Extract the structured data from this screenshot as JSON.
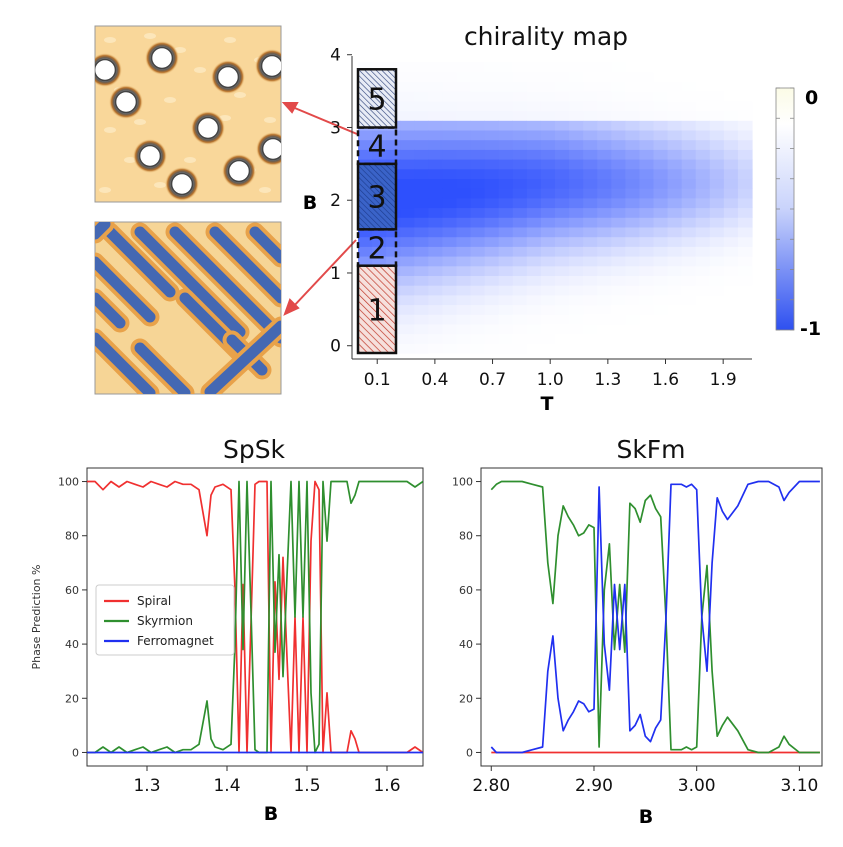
{
  "chart_data": [
    {
      "type": "heatmap",
      "title": "chirality map",
      "xlabel": "T",
      "ylabel": "B",
      "x_ticks": [
        "0.1",
        "0.4",
        "0.7",
        "1.0",
        "1.3",
        "1.6",
        "1.9"
      ],
      "y_ticks": [
        "0",
        "1",
        "2",
        "3",
        "4"
      ],
      "xlim": [
        0.0,
        2.05
      ],
      "ylim": [
        -0.1,
        3.9
      ],
      "colorbar": {
        "min_label": "-1",
        "max_label": "0",
        "min": -1,
        "max": 0,
        "min_color": "#2e50f0",
        "mid_color": "#ffffff",
        "max_color": "#fbfbe6"
      },
      "phase_regions": [
        {
          "label": "1",
          "b_min": -0.1,
          "b_max": 1.1,
          "style": "hatched",
          "color": "#c0392b"
        },
        {
          "label": "2",
          "b_min": 1.1,
          "b_max": 1.6,
          "style": "dashed"
        },
        {
          "label": "3",
          "b_min": 1.6,
          "b_max": 2.5,
          "style": "hatched",
          "color": "#1f4a9e"
        },
        {
          "label": "4",
          "b_min": 2.5,
          "b_max": 3.0,
          "style": "dashed"
        },
        {
          "label": "5",
          "b_min": 3.0,
          "b_max": 3.8,
          "style": "hatched",
          "color": "#1f3a70"
        }
      ],
      "insets": [
        {
          "name": "skyrmion-lattice",
          "points_to_region": "4"
        },
        {
          "name": "spiral-stripes",
          "points_to_region": "2"
        }
      ]
    },
    {
      "type": "line",
      "title": "SpSk",
      "xlabel": "B",
      "ylabel": "Phase Prediction %",
      "xlim": [
        1.225,
        1.645
      ],
      "ylim": [
        -5,
        105
      ],
      "x_ticks": [
        "1.3",
        "1.4",
        "1.5",
        "1.6"
      ],
      "y_ticks": [
        "0",
        "20",
        "40",
        "60",
        "80",
        "100"
      ],
      "x": [
        1.225,
        1.235,
        1.245,
        1.255,
        1.265,
        1.275,
        1.285,
        1.295,
        1.305,
        1.315,
        1.325,
        1.335,
        1.345,
        1.355,
        1.365,
        1.375,
        1.38,
        1.385,
        1.395,
        1.405,
        1.41,
        1.415,
        1.42,
        1.425,
        1.43,
        1.435,
        1.44,
        1.445,
        1.45,
        1.455,
        1.46,
        1.465,
        1.47,
        1.475,
        1.48,
        1.485,
        1.49,
        1.495,
        1.5,
        1.505,
        1.51,
        1.515,
        1.52,
        1.525,
        1.53,
        1.535,
        1.54,
        1.545,
        1.55,
        1.555,
        1.56,
        1.565,
        1.57,
        1.575,
        1.585,
        1.595,
        1.605,
        1.615,
        1.625,
        1.635,
        1.645
      ],
      "series": [
        {
          "name": "Spiral",
          "color": "#f03030",
          "values": [
            100,
            100,
            97,
            100,
            98,
            100,
            99,
            98,
            100,
            99,
            98,
            100,
            99,
            99,
            97,
            80,
            95,
            98,
            99,
            97,
            60,
            0,
            62,
            0,
            48,
            99,
            100,
            100,
            100,
            0,
            63,
            27,
            72,
            35,
            0,
            50,
            0,
            50,
            0,
            78,
            100,
            97,
            0,
            22,
            0,
            0,
            0,
            0,
            0,
            8,
            5,
            0,
            0,
            0,
            0,
            0,
            0,
            0,
            0,
            2,
            0
          ]
        },
        {
          "name": "Skyrmion",
          "color": "#2f8f2f",
          "values": [
            0,
            0,
            2,
            0,
            2,
            0,
            1,
            2,
            0,
            1,
            2,
            0,
            1,
            1,
            3,
            19,
            5,
            2,
            1,
            3,
            40,
            100,
            38,
            100,
            52,
            1,
            0,
            0,
            0,
            100,
            37,
            73,
            28,
            65,
            100,
            50,
            100,
            50,
            100,
            22,
            0,
            3,
            100,
            78,
            100,
            100,
            100,
            100,
            100,
            92,
            95,
            100,
            100,
            100,
            100,
            100,
            100,
            100,
            100,
            98,
            100
          ]
        },
        {
          "name": "Ferromagnet",
          "color": "#2030f0",
          "values": [
            0,
            0,
            0,
            0,
            0,
            0,
            0,
            0,
            0,
            0,
            0,
            0,
            0,
            0,
            0,
            0,
            0,
            0,
            0,
            0,
            0,
            0,
            0,
            0,
            0,
            0,
            0,
            0,
            0,
            0,
            0,
            0,
            0,
            0,
            0,
            0,
            0,
            0,
            0,
            0,
            0,
            0,
            0,
            0,
            0,
            0,
            0,
            0,
            0,
            0,
            0,
            0,
            0,
            0,
            0,
            0,
            0,
            0,
            0,
            0,
            0
          ]
        }
      ],
      "legend": [
        "Spiral",
        "Skyrmion",
        "Ferromagnet"
      ]
    },
    {
      "type": "line",
      "title": "SkFm",
      "xlabel": "B",
      "ylabel": "",
      "xlim": [
        2.79,
        3.122
      ],
      "ylim": [
        -5,
        105
      ],
      "x_ticks": [
        "2.80",
        "2.90",
        "3.00",
        "3.10"
      ],
      "y_ticks": [
        "0",
        "20",
        "40",
        "60",
        "80",
        "100"
      ],
      "x": [
        2.8,
        2.805,
        2.81,
        2.82,
        2.83,
        2.84,
        2.85,
        2.855,
        2.86,
        2.865,
        2.87,
        2.875,
        2.88,
        2.885,
        2.89,
        2.895,
        2.9,
        2.905,
        2.91,
        2.915,
        2.92,
        2.925,
        2.93,
        2.935,
        2.94,
        2.945,
        2.95,
        2.955,
        2.96,
        2.965,
        2.97,
        2.975,
        2.98,
        2.985,
        2.99,
        2.995,
        3.0,
        3.005,
        3.01,
        3.015,
        3.02,
        3.025,
        3.03,
        3.04,
        3.05,
        3.06,
        3.07,
        3.08,
        3.085,
        3.09,
        3.1,
        3.11,
        3.12
      ],
      "series": [
        {
          "name": "Spiral",
          "color": "#f03030",
          "values": [
            0,
            0,
            0,
            0,
            0,
            0,
            0,
            0,
            0,
            0,
            0,
            0,
            0,
            0,
            0,
            0,
            0,
            0,
            0,
            0,
            0,
            0,
            0,
            0,
            0,
            0,
            0,
            0,
            0,
            0,
            0,
            0,
            0,
            0,
            0,
            0,
            0,
            0,
            0,
            0,
            0,
            0,
            0,
            0,
            0,
            0,
            0,
            0,
            0,
            0,
            0,
            0,
            0
          ]
        },
        {
          "name": "Skyrmion",
          "color": "#2f8f2f",
          "values": [
            97,
            99,
            100,
            100,
            100,
            99,
            98,
            70,
            55,
            80,
            91,
            87,
            84,
            80,
            81,
            84,
            83,
            2,
            60,
            77,
            38,
            62,
            37,
            92,
            90,
            85,
            93,
            95,
            90,
            87,
            50,
            1,
            1,
            1,
            2,
            1,
            2,
            50,
            69,
            30,
            6,
            10,
            13,
            8,
            1,
            0,
            0,
            2,
            6,
            3,
            0,
            0,
            0
          ]
        },
        {
          "name": "Ferromagnet",
          "color": "#2030f0",
          "values": [
            2,
            0,
            0,
            0,
            0,
            1,
            2,
            30,
            43,
            20,
            8,
            12,
            15,
            19,
            18,
            15,
            16,
            98,
            40,
            23,
            62,
            38,
            62,
            8,
            10,
            14,
            6,
            4,
            9,
            12,
            49,
            99,
            99,
            99,
            98,
            99,
            97,
            50,
            30,
            70,
            94,
            89,
            86,
            91,
            99,
            100,
            100,
            98,
            93,
            96,
            100,
            100,
            100
          ]
        }
      ]
    }
  ]
}
